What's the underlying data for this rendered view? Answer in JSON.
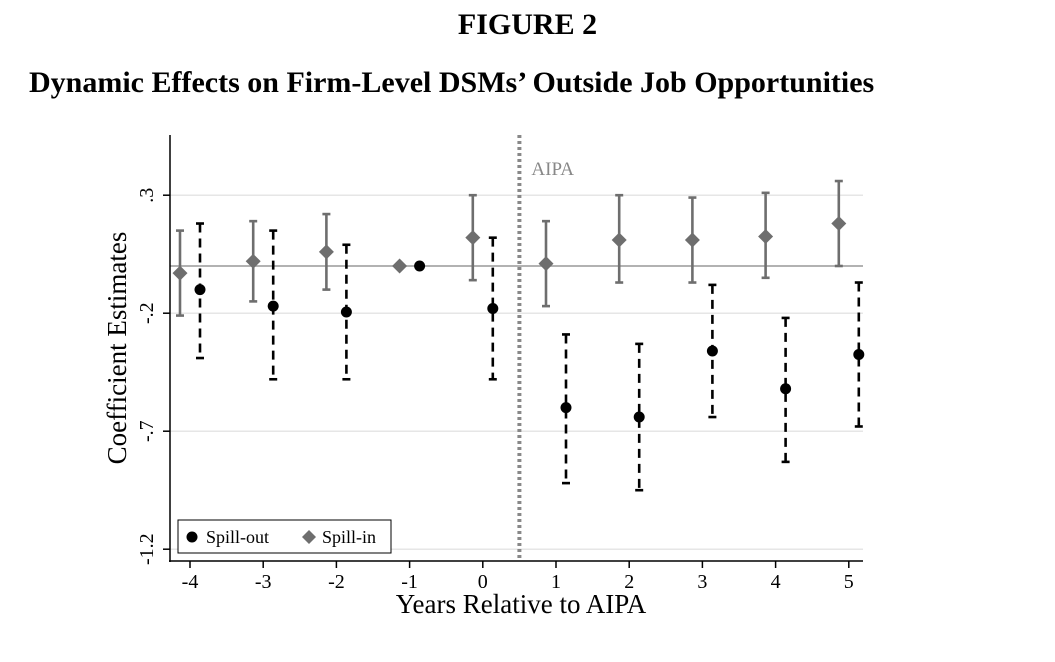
{
  "figure_label": "FIGURE 2",
  "title": "Dynamic Effects on Firm-Level DSMs’ Outside Job Opportunities",
  "chart_data": {
    "type": "scatter",
    "subtype": "coefficient-plot-with-confidence-intervals",
    "xlabel": "Years Relative to AIPA",
    "ylabel": "Coefficient Estimates",
    "x_ticks": [
      "-4",
      "-3",
      "-2",
      "-1",
      "0",
      "1",
      "2",
      "3",
      "4",
      "5"
    ],
    "y_ticks": [
      0.3,
      -0.2,
      -0.7,
      -1.2
    ],
    "y_tick_labels": [
      ".3",
      "-.2",
      "-.7",
      "-1.2"
    ],
    "ylim": [
      -1.25,
      0.55
    ],
    "xlim": [
      -4.5,
      5.3
    ],
    "reference_line_y": 0,
    "vertical_marker": {
      "x": 0.5,
      "label": "AIPA",
      "style": "dotted"
    },
    "grid": "horizontal",
    "legend": {
      "placement": "bottom-left",
      "entries": [
        "Spill-out",
        "Spill-in"
      ]
    },
    "series": [
      {
        "name": "Spill-out",
        "marker": "circle",
        "color": "#000000",
        "ci_style": "dashed",
        "x": [
          -4,
          -3,
          -2,
          -1,
          0,
          1,
          2,
          3,
          4,
          5
        ],
        "estimate": [
          -0.1,
          -0.17,
          -0.195,
          0.0,
          -0.18,
          -0.6,
          -0.64,
          -0.36,
          -0.52,
          -0.375
        ],
        "ci_low": [
          -0.39,
          -0.48,
          -0.48,
          0.0,
          -0.48,
          -0.92,
          -0.95,
          -0.64,
          -0.83,
          -0.68
        ],
        "ci_high": [
          0.18,
          0.15,
          0.09,
          0.0,
          0.12,
          -0.29,
          -0.33,
          -0.08,
          -0.22,
          -0.07
        ]
      },
      {
        "name": "Spill-in",
        "marker": "diamond",
        "color": "#6e6e6e",
        "ci_style": "solid",
        "x": [
          -4,
          -3,
          -2,
          -1,
          0,
          1,
          2,
          3,
          4,
          5
        ],
        "estimate": [
          -0.03,
          0.02,
          0.06,
          0.0,
          0.12,
          0.01,
          0.11,
          0.11,
          0.125,
          0.18
        ],
        "ci_low": [
          -0.21,
          -0.15,
          -0.1,
          0.0,
          -0.06,
          -0.17,
          -0.07,
          -0.07,
          -0.05,
          0.0
        ],
        "ci_high": [
          0.15,
          0.19,
          0.22,
          0.0,
          0.3,
          0.19,
          0.3,
          0.29,
          0.31,
          0.36
        ]
      }
    ]
  }
}
